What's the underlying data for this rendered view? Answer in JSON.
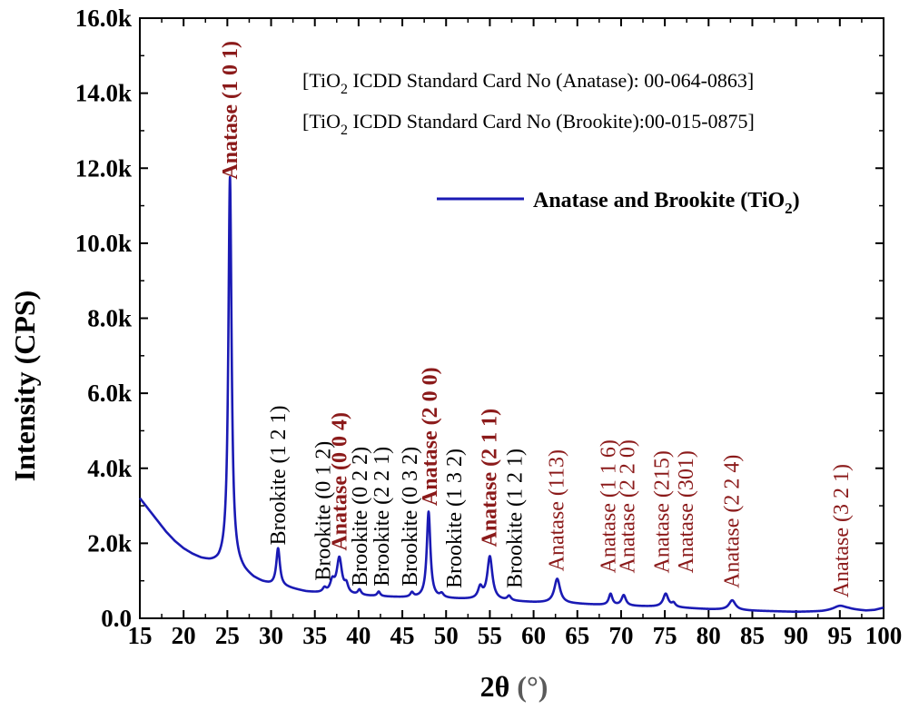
{
  "chart_data": {
    "type": "line",
    "title": "",
    "xlabel_main": "2θ",
    "xlabel_unit": "(°)",
    "xlabel_unit_color": "#5a5a5a",
    "ylabel": "Intensity (CPS)",
    "xlim": [
      15,
      100
    ],
    "ylim": [
      0,
      16000
    ],
    "x_ticks": [
      15,
      20,
      25,
      30,
      35,
      40,
      45,
      50,
      55,
      60,
      65,
      70,
      75,
      80,
      85,
      90,
      95,
      100
    ],
    "x_tick_labels": [
      "15",
      "20",
      "25",
      "30",
      "35",
      "40",
      "45",
      "50",
      "55",
      "60",
      "65",
      "70",
      "75",
      "80",
      "85",
      "90",
      "95",
      "100"
    ],
    "y_ticks": [
      0,
      2000,
      4000,
      6000,
      8000,
      10000,
      12000,
      14000,
      16000
    ],
    "y_tick_labels": [
      "0.0",
      "2.0k",
      "4.0k",
      "6.0k",
      "8.0k",
      "10.0k",
      "12.0k",
      "14.0k",
      "16.0k"
    ],
    "line_color": "#1a1ab4",
    "anatase_color": "#8b1a1a",
    "brookite_color": "#000000",
    "series": [
      {
        "name": "Anatase and Brookite (TiO",
        "name_sub": "2",
        "name_close": ")",
        "baseline": [
          [
            15,
            3200
          ],
          [
            16,
            2900
          ],
          [
            17,
            2600
          ],
          [
            18,
            2300
          ],
          [
            19,
            2050
          ],
          [
            20,
            1850
          ],
          [
            21,
            1700
          ],
          [
            22,
            1580
          ],
          [
            23,
            1500
          ],
          [
            24,
            1450
          ],
          [
            24.8,
            1500
          ],
          [
            26,
            1400
          ],
          [
            27,
            1200
          ],
          [
            28,
            1050
          ],
          [
            29,
            950
          ],
          [
            30,
            880
          ],
          [
            32,
            800
          ],
          [
            34,
            700
          ],
          [
            36,
            650
          ],
          [
            40,
            600
          ],
          [
            45,
            550
          ],
          [
            50,
            520
          ],
          [
            55,
            480
          ],
          [
            60,
            420
          ],
          [
            65,
            380
          ],
          [
            70,
            330
          ],
          [
            75,
            300
          ],
          [
            80,
            240
          ],
          [
            85,
            200
          ],
          [
            90,
            170
          ],
          [
            93,
            180
          ],
          [
            96,
            230
          ],
          [
            98,
            200
          ],
          [
            99,
            220
          ],
          [
            100,
            280
          ]
        ],
        "peaks": [
          {
            "pos": 25.3,
            "height": 10300,
            "width": 0.22
          },
          {
            "pos": 30.8,
            "height": 1000,
            "width": 0.25
          },
          {
            "pos": 36.1,
            "height": 120,
            "width": 0.25
          },
          {
            "pos": 37.0,
            "height": 300,
            "width": 0.3
          },
          {
            "pos": 37.8,
            "height": 950,
            "width": 0.35
          },
          {
            "pos": 38.6,
            "height": 220,
            "width": 0.25
          },
          {
            "pos": 40.1,
            "height": 140,
            "width": 0.22
          },
          {
            "pos": 42.3,
            "height": 120,
            "width": 0.2
          },
          {
            "pos": 46.1,
            "height": 120,
            "width": 0.22
          },
          {
            "pos": 48.0,
            "height": 2300,
            "width": 0.25
          },
          {
            "pos": 49.5,
            "height": 100,
            "width": 0.25
          },
          {
            "pos": 53.9,
            "height": 300,
            "width": 0.3
          },
          {
            "pos": 55.0,
            "height": 1150,
            "width": 0.35
          },
          {
            "pos": 57.2,
            "height": 120,
            "width": 0.25
          },
          {
            "pos": 62.7,
            "height": 650,
            "width": 0.4
          },
          {
            "pos": 68.8,
            "height": 300,
            "width": 0.25
          },
          {
            "pos": 70.3,
            "height": 280,
            "width": 0.3
          },
          {
            "pos": 75.1,
            "height": 350,
            "width": 0.35
          },
          {
            "pos": 76.0,
            "height": 100,
            "width": 0.25
          },
          {
            "pos": 82.7,
            "height": 260,
            "width": 0.45
          },
          {
            "pos": 95.0,
            "height": 120,
            "width": 0.9
          }
        ]
      }
    ],
    "peak_labels": [
      {
        "text": "Anatase (1 0 1)",
        "kind": "anatase",
        "bold": true,
        "x": 25.3,
        "y": 11700
      },
      {
        "text": "Brookite (1 2 1)",
        "kind": "brookite",
        "bold": false,
        "x": 30.8,
        "y": 1950
      },
      {
        "text": "Brookite (0 1 2)",
        "kind": "brookite",
        "bold": false,
        "x": 35.9,
        "y": 1000
      },
      {
        "text": "Anatase (0 0 4)",
        "kind": "anatase",
        "bold": true,
        "x": 37.8,
        "y": 1800
      },
      {
        "text": "Brookite (0 2 2)",
        "kind": "brookite",
        "bold": false,
        "x": 40.1,
        "y": 850
      },
      {
        "text": "Brookite (2 2 1)",
        "kind": "brookite",
        "bold": false,
        "x": 42.6,
        "y": 850
      },
      {
        "text": "Brookite (0 3 2)",
        "kind": "brookite",
        "bold": false,
        "x": 45.8,
        "y": 850
      },
      {
        "text": "Anatase (2 0 0)",
        "kind": "anatase",
        "bold": true,
        "x": 48.1,
        "y": 3000
      },
      {
        "text": "Brookite (1 3 2)",
        "kind": "brookite",
        "bold": false,
        "x": 50.9,
        "y": 800
      },
      {
        "text": "Anatase (2 1 1)",
        "kind": "anatase",
        "bold": true,
        "x": 54.9,
        "y": 1900
      },
      {
        "text": "Brookite (1 2 1)",
        "kind": "brookite",
        "bold": false,
        "x": 57.8,
        "y": 800
      },
      {
        "text": "Anatase (113)",
        "kind": "anatase",
        "bold": false,
        "x": 62.6,
        "y": 1250
      },
      {
        "text": "Anatase (1 1 6)",
        "kind": "anatase",
        "bold": false,
        "x": 68.5,
        "y": 1200
      },
      {
        "text": "Anatase (2 2 0)",
        "kind": "anatase",
        "bold": false,
        "x": 70.7,
        "y": 1200
      },
      {
        "text": "Anatase (215)",
        "kind": "anatase",
        "bold": false,
        "x": 74.6,
        "y": 1200
      },
      {
        "text": "Anatase (301)",
        "kind": "anatase",
        "bold": false,
        "x": 77.4,
        "y": 1200
      },
      {
        "text": "Anatase (2 2 4)",
        "kind": "anatase",
        "bold": false,
        "x": 82.6,
        "y": 800
      },
      {
        "text": "Anatase (3 2 1)",
        "kind": "anatase",
        "bold": false,
        "x": 95.1,
        "y": 550
      }
    ],
    "annotations": [
      {
        "pre": "[TiO",
        "sub": "2",
        "post": " ICDD Standard Card No (Anatase): 00-064-0863]"
      },
      {
        "pre": "[TiO",
        "sub": "2",
        "post": " ICDD Standard Card No (Brookite):00-015-0875]"
      }
    ],
    "legend_position": "top-right"
  }
}
